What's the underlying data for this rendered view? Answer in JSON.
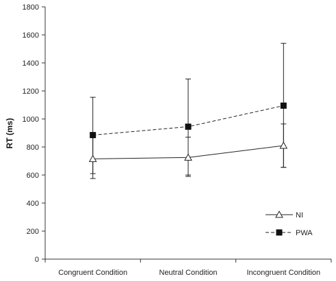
{
  "chart_data": {
    "type": "line",
    "title": "",
    "xlabel": "",
    "ylabel": "RT (ms)",
    "ylim": [
      0,
      1800
    ],
    "yticks": [
      0,
      200,
      400,
      600,
      800,
      1000,
      1200,
      1400,
      1600,
      1800
    ],
    "categories": [
      "Congruent Condition",
      "Neutral Condition",
      "Incongruent Condition"
    ],
    "grid": false,
    "legend_position": "bottom-right",
    "series": [
      {
        "name": "NI",
        "marker": "open-triangle",
        "line_style": "solid",
        "values": [
          715,
          725,
          810
        ],
        "error_low": [
          575,
          590,
          655
        ],
        "error_high": [
          870,
          870,
          965
        ]
      },
      {
        "name": "PWA",
        "marker": "filled-square",
        "line_style": "dashed",
        "values": [
          885,
          945,
          1095
        ],
        "error_low": [
          610,
          600,
          655
        ],
        "error_high": [
          1155,
          1285,
          1540
        ]
      }
    ]
  },
  "colors": {
    "axis": "#333333",
    "line": "#222222"
  }
}
